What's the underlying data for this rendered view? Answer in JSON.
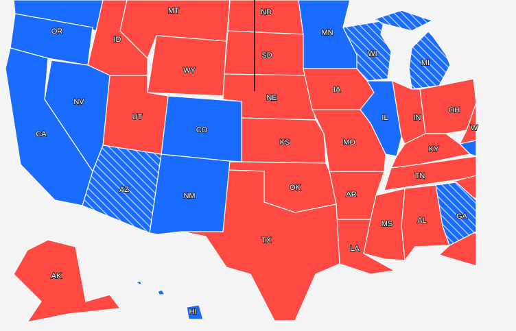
{
  "colors": {
    "red": "#ff4a44",
    "blue": "#1a6cff"
  },
  "states": [
    {
      "party": "blue"
    },
    {
      "label": "OR",
      "party": "blue"
    },
    {
      "label": "ID",
      "party": "red"
    },
    {
      "label": "MT",
      "party": "red"
    },
    {
      "label": "WY",
      "party": "red"
    },
    {
      "label": "ND",
      "party": "red"
    },
    {
      "label": "SD",
      "party": "red"
    },
    {
      "label": "NE",
      "party": "red"
    },
    {
      "label": "MN",
      "party": "blue"
    },
    {
      "label": "WI",
      "party": "hatched"
    },
    {
      "label": "MI",
      "party": "hatched"
    },
    {
      "label": "IA",
      "party": "red"
    },
    {
      "label": "IL",
      "party": "blue"
    },
    {
      "label": "IN",
      "party": "red"
    },
    {
      "label": "OH",
      "party": "red"
    },
    {
      "label": "W",
      "party": "red"
    },
    {
      "party": "blue"
    },
    {
      "label": "KY",
      "party": "red"
    },
    {
      "label": "TN",
      "party": "red"
    },
    {
      "party": "red"
    },
    {
      "label": "GA",
      "party": "hatched"
    },
    {
      "label": "AL",
      "party": "red"
    },
    {
      "label": "MS",
      "party": "red"
    },
    {
      "label": "LA",
      "party": "red"
    },
    {
      "label": "AR",
      "party": "red"
    },
    {
      "label": "MO",
      "party": "red"
    },
    {
      "label": "KS",
      "party": "red"
    },
    {
      "label": "OK",
      "party": "red"
    },
    {
      "label": "TX",
      "party": "red"
    },
    {
      "label": "NM",
      "party": "blue"
    },
    {
      "label": "CO",
      "party": "blue"
    },
    {
      "label": "UT",
      "party": "red"
    },
    {
      "label": "AZ",
      "party": "hatched"
    },
    {
      "label": "NV",
      "party": "blue"
    },
    {
      "label": "CA",
      "party": "blue"
    },
    {
      "label": "AK",
      "party": "red"
    },
    {
      "label": "HI",
      "party": "blue"
    }
  ]
}
